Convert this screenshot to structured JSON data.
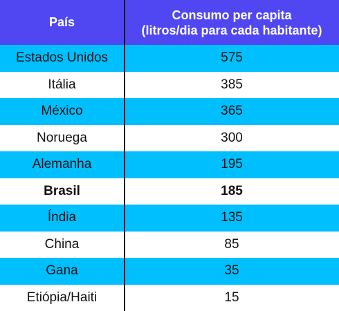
{
  "chart_data": {
    "type": "table",
    "columns": [
      "País",
      [
        "Consumo per capita",
        "(litros/dia para cada habitante)"
      ]
    ],
    "rows": [
      {
        "country": "Estados Unidos",
        "value": "575",
        "highlight": false
      },
      {
        "country": "Itália",
        "value": "385",
        "highlight": false
      },
      {
        "country": "México",
        "value": "365",
        "highlight": false
      },
      {
        "country": "Noruega",
        "value": "300",
        "highlight": false
      },
      {
        "country": "Alemanha",
        "value": "195",
        "highlight": false
      },
      {
        "country": "Brasil",
        "value": "185",
        "highlight": true
      },
      {
        "country": "Índia",
        "value": "135",
        "highlight": false
      },
      {
        "country": "China",
        "value": "85",
        "highlight": false
      },
      {
        "country": "Gana",
        "value": "35",
        "highlight": false
      },
      {
        "country": "Etiópia/Haiti",
        "value": "15",
        "highlight": false
      }
    ]
  },
  "colors": {
    "header_bg": "#5047f2",
    "alt_row_bg": "#00bfff",
    "plain_row_bg": "#ffffff",
    "text": "#111111",
    "header_text": "#ffffff"
  }
}
